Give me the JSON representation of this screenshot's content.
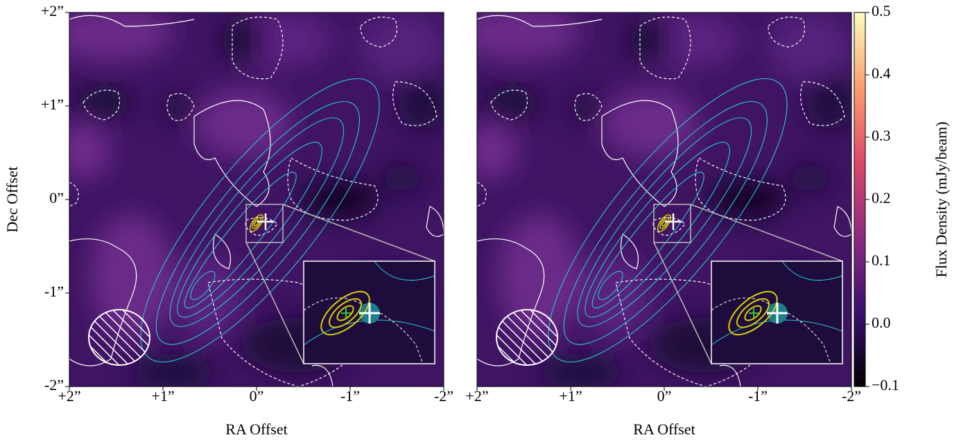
{
  "chart_data": [
    {
      "type": "image",
      "xlabel": "RA Offset",
      "ylabel": "Dec Offset",
      "xlim": [
        2,
        -2
      ],
      "ylim": [
        -2,
        2
      ],
      "xticks": [
        {
          "value": 2,
          "label": "+2”"
        },
        {
          "value": 1,
          "label": "+1”"
        },
        {
          "value": 0,
          "label": "0”"
        },
        {
          "value": -1,
          "label": "-1”"
        },
        {
          "value": -2,
          "label": "-2”"
        }
      ],
      "yticks": [
        {
          "value": 2,
          "label": "+2”"
        },
        {
          "value": 1,
          "label": "+1”"
        },
        {
          "value": 0,
          "label": "0”"
        },
        {
          "value": -1,
          "label": "-1”"
        },
        {
          "value": -2,
          "label": "-2”"
        }
      ]
    },
    {
      "type": "image",
      "xlabel": "RA Offset",
      "xlim": [
        2,
        -2
      ],
      "xticks": [
        {
          "value": 2,
          "label": "+2”"
        },
        {
          "value": 1,
          "label": "+1”"
        },
        {
          "value": 0,
          "label": "0”"
        },
        {
          "value": -1,
          "label": "-1”"
        },
        {
          "value": -2,
          "label": "-2”"
        }
      ]
    },
    {
      "type": "colorbar",
      "label": "Flux Density (mJy/beam)",
      "lim": [
        -0.1,
        0.5
      ],
      "ticks": [
        {
          "value": 0.5,
          "label": "0.5"
        },
        {
          "value": 0.4,
          "label": "0.4"
        },
        {
          "value": 0.3,
          "label": "0.3"
        },
        {
          "value": 0.2,
          "label": "0.2"
        },
        {
          "value": 0.1,
          "label": "0.1"
        },
        {
          "value": 0,
          "label": "0.0"
        },
        {
          "value": -0.1,
          "label": "−0.1"
        }
      ],
      "colors": [
        "#000004",
        "#3b0f70",
        "#8c2981",
        "#de4968",
        "#fe9f6d",
        "#fcfdbf"
      ]
    }
  ]
}
